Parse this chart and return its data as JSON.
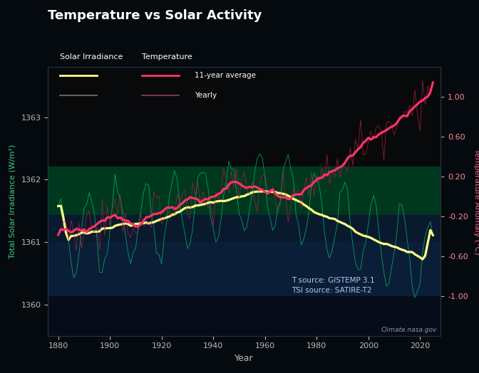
{
  "title": "Temperature vs Solar Activity",
  "xlabel": "Year",
  "ylabel_left": "Total Solar Irradiance (W/m²)",
  "ylabel_right": "Temperature Anomaly (°C)",
  "tsi_ylim": [
    1359.5,
    1363.8
  ],
  "temp_ylim": [
    -1.4,
    1.3
  ],
  "tsi_yticks": [
    1360,
    1361,
    1362,
    1363
  ],
  "temp_yticks": [
    -1.0,
    -0.6,
    -0.2,
    0.2,
    0.6,
    1.0
  ],
  "xlim": [
    1876,
    2028
  ],
  "xticks": [
    1880,
    1900,
    1920,
    1940,
    1960,
    1980,
    2000,
    2020
  ],
  "bg_color": "#050a0e",
  "fig_bg_color": "#050a0e",
  "title_color": "#ffffff",
  "tick_color": "#bbbbbb",
  "tsi_avg_color": "#ffff88",
  "tsi_yearly_color": "#00cc66",
  "temp_avg_color": "#ff3366",
  "temp_yearly_color": "#aa2244",
  "annotation_text": "T source: GISTEMP 3.1\nTSI source: SATIRE-T2",
  "annotation_color": "#aaccee",
  "credit_text": "Climate.nasa.gov",
  "credit_color": "#8899aa",
  "ylabel_left_color": "#44cc88",
  "ylabel_right_color": "#ff6688"
}
